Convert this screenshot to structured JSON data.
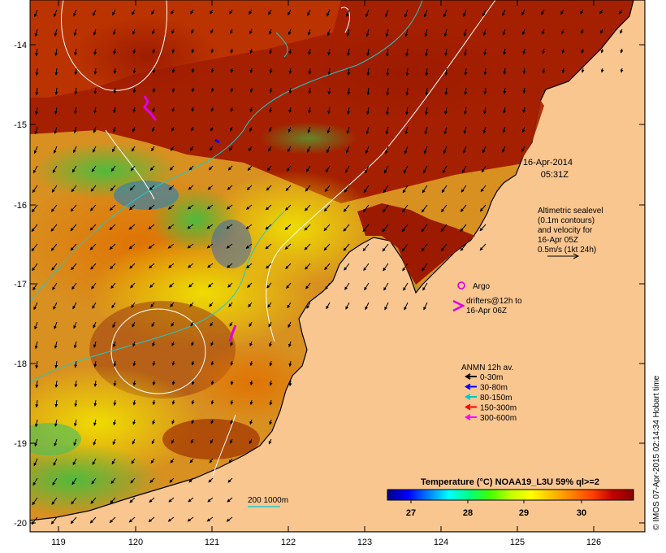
{
  "map": {
    "lon_ticks": [
      "119",
      "120",
      "121",
      "122",
      "123",
      "124",
      "125",
      "126"
    ],
    "lat_ticks": [
      "-14",
      "-15",
      "-16",
      "-17",
      "-18",
      "-19",
      "-20"
    ],
    "land_color": "#f9c690",
    "coast_color": "#000000"
  },
  "timestamp": {
    "date": "16-Apr-2014",
    "time": "05:31Z"
  },
  "altimetry_note": {
    "lines": [
      "Altimetric sealevel",
      "(0.1m contours)",
      "and velocity for",
      "16-Apr 05Z",
      "0.5m/s (1kt 24h)"
    ]
  },
  "argo": {
    "label": "Argo",
    "color": "#e000e0"
  },
  "drifters": {
    "lines": [
      "drifters@12h to",
      "16-Apr 06Z"
    ],
    "color": "#e000e0"
  },
  "anmn": {
    "title": "ANMN 12h av.",
    "items": [
      {
        "label": "0-30m",
        "color": "#000000"
      },
      {
        "label": "30-80m",
        "color": "#0000ff"
      },
      {
        "label": "80-150m",
        "color": "#00c8c8"
      },
      {
        "label": "150-300m",
        "color": "#ff0000"
      },
      {
        "label": "300-600m",
        "color": "#ff00ff"
      }
    ]
  },
  "isobath_legend": {
    "label": "200  1000m",
    "color": "#00c8c8"
  },
  "colorbar": {
    "title": "Temperature (°C) NOAA19_L3U 59% ql>=2",
    "tick_labels": [
      "27",
      "28",
      "29",
      "30"
    ],
    "colors": [
      "#00008b",
      "#0000ff",
      "#0080ff",
      "#00ffff",
      "#00ff80",
      "#40ff00",
      "#c0ff00",
      "#ffff00",
      "#ffc000",
      "#ff8000",
      "#ff4000",
      "#c00000",
      "#8b0000"
    ]
  },
  "credit": "© IMOS 07-Apr-2015 02:14:34 Hobart time"
}
